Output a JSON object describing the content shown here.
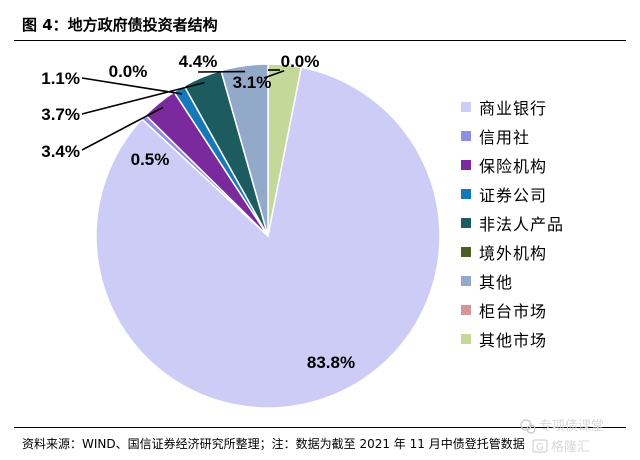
{
  "figure": {
    "title": "图 4：地方政府债投资者结构",
    "source": "资料来源：WIND、国信证券经济研究所整理；注：数据为截至 2021 年 11 月中债登托管数据"
  },
  "chart_data": {
    "type": "pie",
    "start_angle_deg": 0,
    "direction": "clockwise",
    "slices": [
      {
        "name": "其他市场",
        "value": 3.1,
        "label": "3.1%",
        "color": "#c4d89a"
      },
      {
        "name": "商业银行",
        "value": 83.8,
        "label": "83.8%",
        "color": "#ccccf6"
      },
      {
        "name": "信用社",
        "value": 0.5,
        "label": "0.5%",
        "color": "#8f8fe6"
      },
      {
        "name": "保险机构",
        "value": 3.4,
        "label": "3.4%",
        "color": "#7a2a9c"
      },
      {
        "name": "证券公司",
        "value": 1.1,
        "label": "1.1%",
        "color": "#1579b8"
      },
      {
        "name": "非法人产品",
        "value": 3.7,
        "label": "3.7%",
        "color": "#1c5c60"
      },
      {
        "name": "境外机构",
        "value": 0.0,
        "label": "0.0%",
        "color": "#4a5e21"
      },
      {
        "name": "其他",
        "value": 4.4,
        "label": "4.4%",
        "color": "#93a9ca"
      },
      {
        "name": "柜台市场",
        "value": 0.0,
        "label": "0.0%",
        "color": "#d59696"
      }
    ],
    "legend": {
      "position": "right",
      "items": [
        {
          "name": "商业银行",
          "color": "#ccccf6"
        },
        {
          "name": "信用社",
          "color": "#8f8fe6"
        },
        {
          "name": "保险机构",
          "color": "#7a2a9c"
        },
        {
          "name": "证券公司",
          "color": "#1579b8"
        },
        {
          "name": "非法人产品",
          "color": "#1c5c60"
        },
        {
          "name": "境外机构",
          "color": "#4a5e21"
        },
        {
          "name": "其他",
          "color": "#93a9ca"
        },
        {
          "name": "柜台市场",
          "color": "#d59696"
        },
        {
          "name": "其他市场",
          "color": "#c4d89a"
        }
      ]
    }
  },
  "watermark": {
    "text": "专项债课堂",
    "brand": "格隆汇"
  }
}
